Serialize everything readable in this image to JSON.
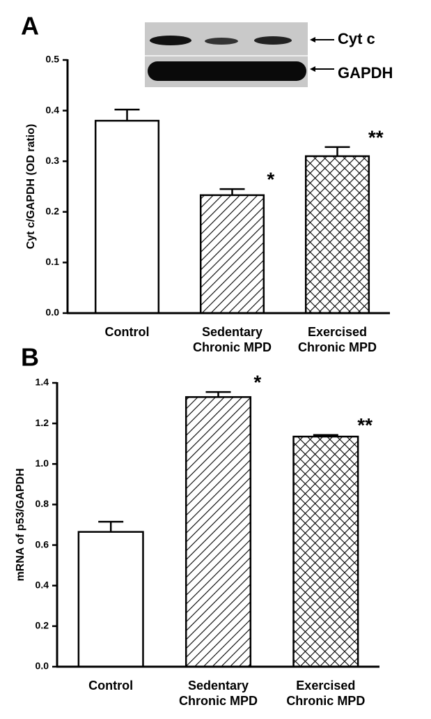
{
  "chart_data": [
    {
      "type": "bar",
      "panel": "A",
      "ylabel": "Cyt c/GAPDH (OD ratio)",
      "categories": [
        [
          "Control"
        ],
        [
          "Sedentary",
          "Chronic MPD"
        ],
        [
          "Exercised",
          "Chronic MPD"
        ]
      ],
      "values": [
        0.38,
        0.233,
        0.31
      ],
      "errors": [
        0.022,
        0.012,
        0.018
      ],
      "fills": [
        "white",
        "hatch",
        "crosshatch"
      ],
      "annotations": [
        null,
        "*",
        "**"
      ],
      "blot_labels": [
        "Cyt c",
        "GAPDH"
      ],
      "ylim": [
        0,
        0.5
      ],
      "yticks": [
        {
          "value": 0,
          "label": "0.0"
        },
        0.1,
        0.2,
        0.3,
        0.4,
        0.5
      ]
    },
    {
      "type": "bar",
      "panel": "B",
      "ylabel": "mRNA of p53/GAPDH",
      "categories": [
        [
          "Control"
        ],
        [
          "Sedentary",
          "Chronic MPD"
        ],
        [
          "Exercised",
          "Chronic MPD"
        ]
      ],
      "values": [
        0.665,
        1.33,
        1.135
      ],
      "errors": [
        0.05,
        0.025,
        0.008
      ],
      "fills": [
        "white",
        "hatch",
        "crosshatch"
      ],
      "annotations": [
        null,
        "*",
        "**"
      ],
      "ylim": [
        0,
        1.4
      ],
      "yticks": [
        {
          "value": 0,
          "label": "0.0"
        },
        0.2,
        0.4,
        0.6,
        0.8,
        {
          "value": 1,
          "label": "1.0"
        },
        1.2,
        1.4
      ]
    }
  ]
}
